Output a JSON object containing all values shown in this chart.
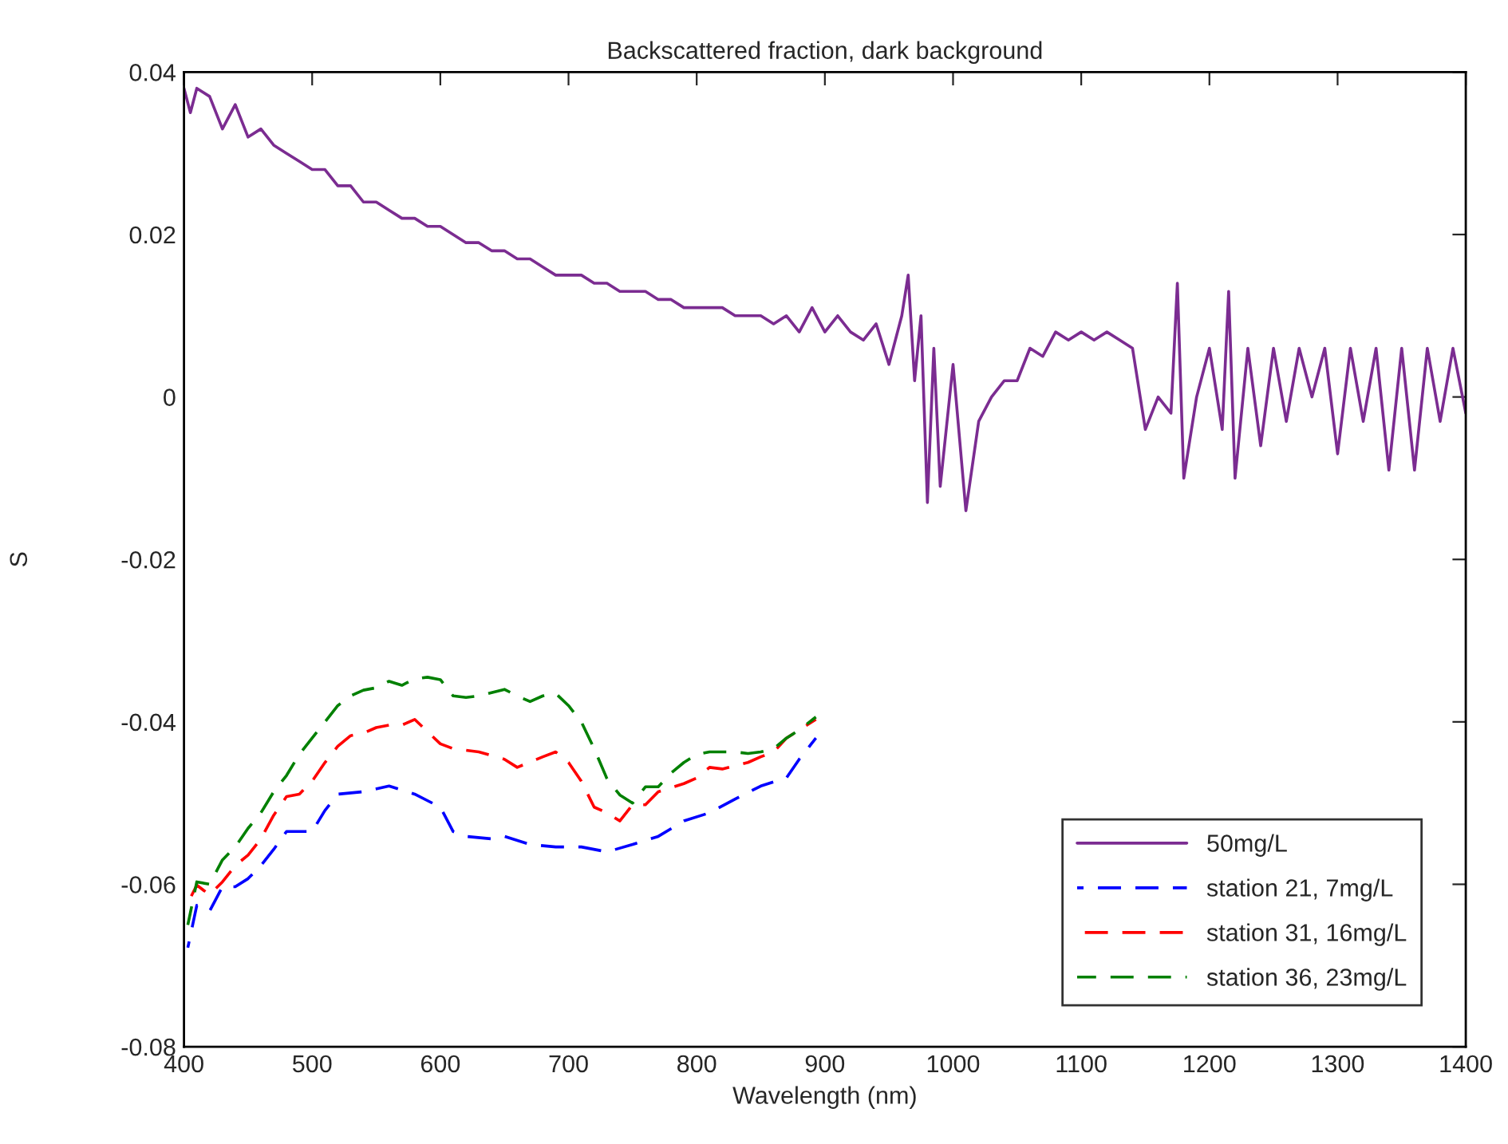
{
  "chart_data": {
    "type": "line",
    "title": "Backscattered fraction, dark background",
    "xlabel": "Wavelength (nm)",
    "ylabel": "S",
    "xlim": [
      400,
      1400
    ],
    "xticks": [
      400,
      500,
      600,
      700,
      800,
      900,
      1000,
      1100,
      1200,
      1300,
      1400
    ],
    "ylim": [
      -0.08,
      0.04
    ],
    "yticks": [
      -0.08,
      -0.06,
      -0.04,
      -0.02,
      0,
      0.02,
      0.04
    ],
    "grid": false,
    "legend": "bottom right",
    "series": [
      {
        "name": "50mg/L",
        "color": "#7b2c91",
        "line_style": "solid",
        "x": [
          400,
          405,
          410,
          420,
          430,
          440,
          450,
          460,
          470,
          480,
          490,
          500,
          510,
          520,
          530,
          540,
          550,
          560,
          570,
          580,
          590,
          600,
          610,
          620,
          630,
          640,
          650,
          660,
          670,
          680,
          690,
          700,
          710,
          720,
          730,
          740,
          750,
          760,
          770,
          780,
          790,
          800,
          810,
          820,
          830,
          840,
          850,
          860,
          870,
          880,
          890,
          900,
          910,
          920,
          930,
          940,
          950,
          960,
          965,
          970,
          975,
          980,
          985,
          990,
          1000,
          1010,
          1020,
          1030,
          1040,
          1050,
          1060,
          1070,
          1080,
          1090,
          1100,
          1110,
          1120,
          1130,
          1140,
          1150,
          1160,
          1170,
          1175,
          1180,
          1190,
          1200,
          1210,
          1215,
          1220,
          1230,
          1240,
          1250,
          1260,
          1270,
          1280,
          1290,
          1300,
          1310,
          1320,
          1330,
          1340,
          1350,
          1360,
          1370,
          1380,
          1390,
          1400
        ],
        "values": [
          0.038,
          0.035,
          0.038,
          0.037,
          0.033,
          0.036,
          0.032,
          0.033,
          0.031,
          0.03,
          0.029,
          0.028,
          0.028,
          0.026,
          0.026,
          0.024,
          0.024,
          0.023,
          0.022,
          0.022,
          0.021,
          0.021,
          0.02,
          0.019,
          0.019,
          0.018,
          0.018,
          0.017,
          0.017,
          0.016,
          0.015,
          0.015,
          0.015,
          0.014,
          0.014,
          0.013,
          0.013,
          0.013,
          0.012,
          0.012,
          0.011,
          0.011,
          0.011,
          0.011,
          0.01,
          0.01,
          0.01,
          0.009,
          0.01,
          0.008,
          0.011,
          0.008,
          0.01,
          0.008,
          0.007,
          0.009,
          0.004,
          0.01,
          0.015,
          0.002,
          0.01,
          -0.013,
          0.006,
          -0.011,
          0.004,
          -0.014,
          -0.003,
          0.0,
          0.002,
          0.002,
          0.006,
          0.005,
          0.008,
          0.007,
          0.008,
          0.007,
          0.008,
          0.007,
          0.006,
          -0.004,
          0.0,
          -0.002,
          0.014,
          -0.01,
          0.0,
          0.006,
          -0.004,
          0.013,
          -0.01,
          0.006,
          -0.006,
          0.006,
          -0.003,
          0.006,
          0.0,
          0.006,
          -0.007,
          0.006,
          -0.003,
          0.006,
          -0.009,
          0.006,
          -0.009,
          0.006,
          -0.003,
          0.006,
          -0.002
        ]
      },
      {
        "name": "station 21, 7mg/L",
        "color": "#0000ff",
        "line_style": "dashed",
        "x": [
          403,
          410,
          420,
          430,
          440,
          450,
          460,
          470,
          480,
          490,
          500,
          510,
          520,
          540,
          560,
          580,
          600,
          610,
          620,
          640,
          650,
          670,
          690,
          710,
          730,
          750,
          770,
          790,
          810,
          830,
          850,
          870,
          880,
          893
        ],
        "values": [
          -0.0678,
          -0.0626,
          -0.0633,
          -0.0603,
          -0.0603,
          -0.0593,
          -0.0577,
          -0.0557,
          -0.0535,
          -0.0535,
          -0.0535,
          -0.0509,
          -0.0489,
          -0.0486,
          -0.0479,
          -0.0489,
          -0.0505,
          -0.0535,
          -0.0541,
          -0.0544,
          -0.0541,
          -0.0551,
          -0.0554,
          -0.0554,
          -0.056,
          -0.0551,
          -0.0541,
          -0.0522,
          -0.0512,
          -0.0495,
          -0.0479,
          -0.0469,
          -0.0446,
          -0.042
        ]
      },
      {
        "name": "station 31, 16mg/L",
        "color": "#ff0000",
        "line_style": "dashed",
        "x": [
          403,
          410,
          420,
          430,
          440,
          450,
          460,
          470,
          480,
          490,
          500,
          510,
          520,
          530,
          540,
          550,
          560,
          570,
          580,
          600,
          610,
          630,
          650,
          660,
          680,
          690,
          700,
          710,
          720,
          730,
          740,
          750,
          760,
          770,
          790,
          800,
          810,
          820,
          840,
          850,
          860,
          870,
          880,
          893
        ],
        "values": [
          -0.0623,
          -0.0601,
          -0.0613,
          -0.0597,
          -0.0577,
          -0.0564,
          -0.0544,
          -0.0515,
          -0.0492,
          -0.0489,
          -0.0473,
          -0.045,
          -0.043,
          -0.0417,
          -0.0414,
          -0.0407,
          -0.0404,
          -0.0404,
          -0.0397,
          -0.0427,
          -0.0433,
          -0.0437,
          -0.0446,
          -0.0456,
          -0.0443,
          -0.0437,
          -0.045,
          -0.0473,
          -0.0505,
          -0.0512,
          -0.0522,
          -0.0502,
          -0.0502,
          -0.0486,
          -0.0476,
          -0.0469,
          -0.0456,
          -0.0458,
          -0.045,
          -0.0443,
          -0.0437,
          -0.042,
          -0.041,
          -0.0397
        ]
      },
      {
        "name": "station 36, 23mg/L",
        "color": "#008000",
        "line_style": "dashed",
        "x": [
          403,
          410,
          420,
          430,
          440,
          450,
          460,
          470,
          480,
          490,
          500,
          510,
          520,
          530,
          540,
          550,
          560,
          570,
          580,
          590,
          600,
          610,
          620,
          630,
          650,
          660,
          670,
          680,
          690,
          700,
          710,
          720,
          730,
          740,
          750,
          760,
          770,
          780,
          790,
          800,
          810,
          820,
          830,
          840,
          850,
          860,
          870,
          880,
          893
        ],
        "values": [
          -0.065,
          -0.0597,
          -0.06,
          -0.057,
          -0.0554,
          -0.0531,
          -0.0512,
          -0.0486,
          -0.0466,
          -0.044,
          -0.042,
          -0.04,
          -0.038,
          -0.0368,
          -0.0361,
          -0.0358,
          -0.035,
          -0.0355,
          -0.0347,
          -0.0345,
          -0.0348,
          -0.0368,
          -0.037,
          -0.0368,
          -0.036,
          -0.0368,
          -0.0375,
          -0.0368,
          -0.0365,
          -0.038,
          -0.04,
          -0.0433,
          -0.047,
          -0.049,
          -0.05,
          -0.048,
          -0.048,
          -0.0463,
          -0.045,
          -0.044,
          -0.0437,
          -0.0437,
          -0.0437,
          -0.0439,
          -0.0437,
          -0.0433,
          -0.042,
          -0.041,
          -0.0394
        ]
      }
    ]
  }
}
